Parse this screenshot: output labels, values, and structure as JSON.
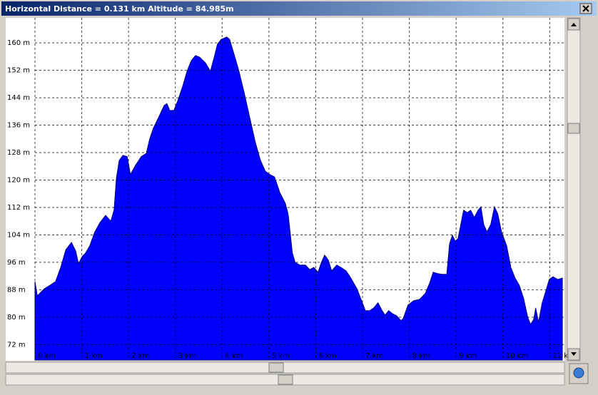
{
  "window": {
    "title": "Horizontal Distance = 0.131 km  Altitude = 84.985m"
  },
  "chart_data": {
    "type": "area",
    "color": "#0000ff",
    "grid": true,
    "x": [
      0.0,
      0.05,
      0.12,
      0.2,
      0.32,
      0.44,
      0.55,
      0.66,
      0.78,
      0.87,
      0.93,
      1.01,
      1.08,
      1.17,
      1.28,
      1.39,
      1.51,
      1.62,
      1.69,
      1.74,
      1.8,
      1.88,
      1.97,
      2.04,
      2.15,
      2.27,
      2.38,
      2.45,
      2.53,
      2.64,
      2.76,
      2.82,
      2.88,
      2.97,
      3.06,
      3.16,
      3.25,
      3.34,
      3.43,
      3.52,
      3.64,
      3.75,
      3.83,
      3.9,
      3.98,
      4.1,
      4.16,
      4.25,
      4.36,
      4.47,
      4.59,
      4.71,
      4.82,
      4.92,
      5.02,
      5.12,
      5.23,
      5.35,
      5.41,
      5.46,
      5.5,
      5.56,
      5.66,
      5.78,
      5.87,
      5.96,
      6.05,
      6.11,
      6.19,
      6.27,
      6.34,
      6.45,
      6.54,
      6.65,
      6.75,
      6.88,
      6.98,
      7.06,
      7.15,
      7.24,
      7.33,
      7.41,
      7.48,
      7.56,
      7.64,
      7.73,
      7.82,
      7.87,
      7.97,
      8.09,
      8.22,
      8.34,
      8.43,
      8.51,
      8.61,
      8.7,
      8.8,
      8.86,
      8.92,
      8.98,
      9.04,
      9.1,
      9.16,
      9.24,
      9.31,
      9.39,
      9.47,
      9.53,
      9.59,
      9.66,
      9.74,
      9.82,
      9.89,
      9.97,
      10.08,
      10.17,
      10.26,
      10.35,
      10.44,
      10.53,
      10.59,
      10.66,
      10.7,
      10.76,
      10.84,
      10.91,
      10.99,
      11.07,
      11.17,
      11.27
    ],
    "values": [
      90.4,
      86.2,
      87.2,
      88.3,
      89.3,
      90.4,
      94.5,
      99.7,
      101.8,
      99.3,
      95.6,
      97.7,
      98.7,
      100.8,
      104.9,
      107.6,
      109.7,
      108.0,
      111.2,
      120.5,
      125.7,
      127.2,
      126.8,
      121.6,
      124.3,
      126.8,
      127.8,
      131.9,
      135.1,
      138.2,
      141.7,
      142.3,
      140.3,
      140.3,
      143.4,
      147.5,
      151.7,
      154.8,
      156.3,
      155.8,
      154.2,
      151.7,
      155.8,
      159.6,
      161.0,
      161.7,
      161.0,
      156.9,
      151.7,
      145.5,
      138.2,
      130.9,
      125.7,
      122.6,
      121.6,
      120.9,
      116.4,
      113.2,
      110.1,
      103.9,
      98.7,
      96.0,
      95.2,
      95.2,
      93.9,
      94.5,
      93.1,
      95.6,
      98.1,
      96.6,
      93.5,
      95.2,
      94.5,
      93.5,
      91.4,
      88.3,
      84.8,
      81.9,
      81.9,
      82.7,
      84.2,
      82.1,
      80.6,
      81.9,
      81.0,
      80.4,
      79.0,
      79.6,
      83.5,
      84.8,
      85.2,
      86.9,
      89.8,
      93.1,
      92.7,
      92.5,
      92.5,
      101.4,
      103.9,
      102.2,
      102.9,
      107.0,
      111.2,
      110.5,
      111.2,
      109.1,
      111.2,
      112.2,
      107.0,
      104.9,
      107.0,
      112.2,
      110.1,
      104.9,
      100.8,
      94.5,
      91.4,
      89.3,
      85.6,
      80.0,
      77.9,
      79.4,
      82.7,
      78.5,
      84.2,
      87.3,
      91.0,
      91.8,
      91.0,
      91.4
    ],
    "xlim": [
      0,
      11.3
    ],
    "xticks": [
      {
        "value": 0,
        "label": "0 km"
      },
      {
        "value": 1,
        "label": "1 km"
      },
      {
        "value": 2,
        "label": "2 km"
      },
      {
        "value": 3,
        "label": "3 km"
      },
      {
        "value": 4,
        "label": "4 km"
      },
      {
        "value": 5,
        "label": "5 km"
      },
      {
        "value": 6,
        "label": "6 km"
      },
      {
        "value": 7,
        "label": "7 km"
      },
      {
        "value": 8,
        "label": "8 km"
      },
      {
        "value": 9,
        "label": "9 km"
      },
      {
        "value": 10,
        "label": "10 km"
      },
      {
        "value": 11,
        "label": "11 km"
      }
    ],
    "ylim": [
      67.5,
      167.3
    ],
    "yticks": [
      {
        "value": 72,
        "label": "72 m"
      },
      {
        "value": 80,
        "label": "80 m"
      },
      {
        "value": 88,
        "label": "88 m"
      },
      {
        "value": 96,
        "label": "96 m"
      },
      {
        "value": 104,
        "label": "104 m"
      },
      {
        "value": 112,
        "label": "112 m"
      },
      {
        "value": 120,
        "label": "120 m"
      },
      {
        "value": 128,
        "label": "128 m"
      },
      {
        "value": 136,
        "label": "136 m"
      },
      {
        "value": 144,
        "label": "144 m"
      },
      {
        "value": 152,
        "label": "152 m"
      },
      {
        "value": 160,
        "label": "160 m"
      }
    ]
  }
}
